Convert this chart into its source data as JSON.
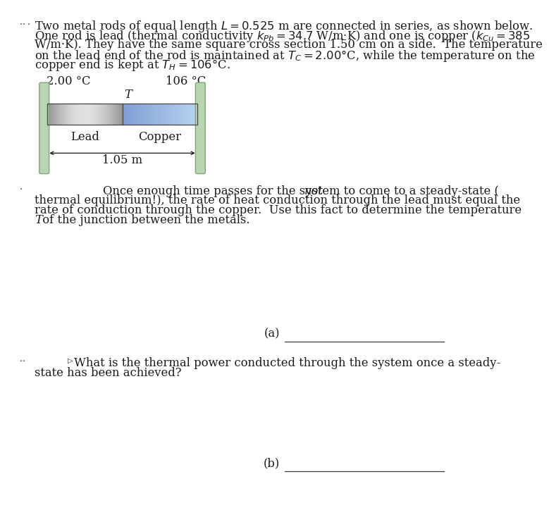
{
  "bg_color": "#ffffff",
  "text_color": "#1a1a1a",
  "fig_width": 8.5,
  "fig_height": 9.15,
  "line1": "Two metal rods of equal length $L = 0.525$ m are connected in series, as shown below.",
  "line2": "One rod is lead (thermal conductivity $k_{Pb} = 34.7$ W/m·K) and one is copper ($k_{Cu} = 385$",
  "line3": "W/m·K). They have the same square cross section 1.50 cm on a side.  The temperature",
  "line4": "on the lead end of the rod is maintained at $T_C = 2.00°$C, while the temperature on the",
  "line5": "copper end is kept at $T_H = 106°$C.",
  "temp_cold": "2.00 °C",
  "temp_hot": "106 °C",
  "label_T": "T",
  "label_Lead": "Lead",
  "label_Copper": "Copper",
  "label_length": "1.05 m",
  "p2_l1": "Once enough time passes for the system to come to a steady-state (",
  "p2_l1_italic": "not",
  "p2_l2": "thermal equilibrium!), the rate of heat conduction through the lead must equal the",
  "p2_l3": "rate of conduction through the copper.  Use this fact to determine the temperature",
  "p2_l4_italic": "T",
  "p2_l4_rest": " of the junction between the metals.",
  "label_a": "(a)",
  "pb_l1": "What is the thermal power conducted through the system once a steady-",
  "pb_l2": "state has been achieved?",
  "label_b": "(b)",
  "wall_color": "#b8d4b0",
  "wall_edge": "#7aaa72",
  "lead_gray_dark": 0.58,
  "lead_gray_light": 0.88,
  "copper_blue_dark": [
    0.5,
    0.62,
    0.82
  ],
  "copper_blue_light": [
    0.72,
    0.82,
    0.95
  ],
  "rod_edge": "#444444",
  "fs": 11.8,
  "fs_small": 11.2
}
